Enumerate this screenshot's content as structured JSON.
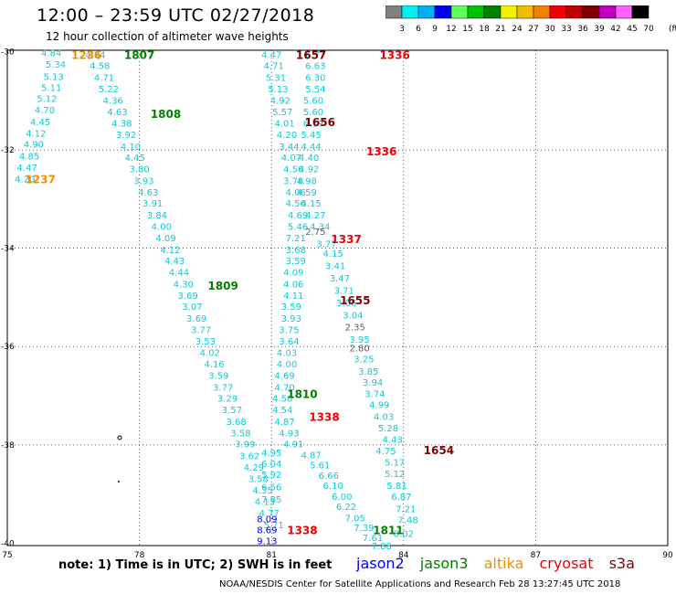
{
  "title": "12:00 – 23:59 UTC 02/27/2018",
  "subtitle": "12 hour collection of altimeter wave heights",
  "color_scale": {
    "colors": [
      "#808080",
      "#00f0f0",
      "#00b0f0",
      "#0000f0",
      "#60ff60",
      "#00c000",
      "#008000",
      "#f0f000",
      "#f0c000",
      "#f08000",
      "#f00000",
      "#c00000",
      "#800000",
      "#c000c0",
      "#ff60ff",
      "#000000"
    ],
    "labels": [
      "3",
      "6",
      "9",
      "12",
      "15",
      "18",
      "21",
      "24",
      "27",
      "30",
      "33",
      "36",
      "39",
      "42",
      "45",
      "70",
      "(ft)"
    ]
  },
  "map": {
    "x_ticks": [
      "75",
      "78",
      "81",
      "84",
      "87",
      "90"
    ],
    "y_ticks": [
      "-30",
      "-32",
      "-34",
      "-36",
      "-38",
      "-40"
    ]
  },
  "track_points": [
    {
      "lon": 76.0,
      "lat": -30.02,
      "v": "4.84"
    },
    {
      "lon": 76.1,
      "lat": -30.25,
      "v": "5.34"
    },
    {
      "lon": 76.05,
      "lat": -30.5,
      "v": "5.13"
    },
    {
      "lon": 76.0,
      "lat": -30.72,
      "v": "5.11"
    },
    {
      "lon": 75.9,
      "lat": -30.95,
      "v": "5.12"
    },
    {
      "lon": 75.85,
      "lat": -31.18,
      "v": "4.70"
    },
    {
      "lon": 75.75,
      "lat": -31.42,
      "v": "4.45"
    },
    {
      "lon": 75.65,
      "lat": -31.65,
      "v": "4.12"
    },
    {
      "lon": 75.6,
      "lat": -31.88,
      "v": "4.90"
    },
    {
      "lon": 75.5,
      "lat": -32.12,
      "v": "4.85"
    },
    {
      "lon": 75.45,
      "lat": -32.35,
      "v": "4.47"
    },
    {
      "lon": 75.4,
      "lat": -32.58,
      "v": "4.20"
    },
    {
      "lon": 77.0,
      "lat": -30.05,
      "v": "4.84"
    },
    {
      "lon": 77.1,
      "lat": -30.28,
      "v": "4.58"
    },
    {
      "lon": 77.2,
      "lat": -30.52,
      "v": "4.71"
    },
    {
      "lon": 77.3,
      "lat": -30.75,
      "v": "5.22"
    },
    {
      "lon": 77.4,
      "lat": -30.98,
      "v": "4.36"
    },
    {
      "lon": 77.5,
      "lat": -31.22,
      "v": "4.63"
    },
    {
      "lon": 77.6,
      "lat": -31.45,
      "v": "4.38"
    },
    {
      "lon": 77.7,
      "lat": -31.68,
      "v": "3.92"
    },
    {
      "lon": 77.8,
      "lat": -31.92,
      "v": "4.10"
    },
    {
      "lon": 77.9,
      "lat": -32.15,
      "v": "4.45"
    },
    {
      "lon": 78.0,
      "lat": -32.38,
      "v": "3.80"
    },
    {
      "lon": 78.1,
      "lat": -32.62,
      "v": "3.93"
    },
    {
      "lon": 78.2,
      "lat": -32.85,
      "v": "4.63"
    },
    {
      "lon": 78.3,
      "lat": -33.08,
      "v": "3.91"
    },
    {
      "lon": 78.4,
      "lat": -33.32,
      "v": "3.84"
    },
    {
      "lon": 78.5,
      "lat": -33.55,
      "v": "4.00"
    },
    {
      "lon": 78.6,
      "lat": -33.78,
      "v": "4.09"
    },
    {
      "lon": 78.7,
      "lat": -34.02,
      "v": "4.12"
    },
    {
      "lon": 78.8,
      "lat": -34.25,
      "v": "4.43"
    },
    {
      "lon": 78.9,
      "lat": -34.48,
      "v": "4.44"
    },
    {
      "lon": 79.0,
      "lat": -34.72,
      "v": "4.30"
    },
    {
      "lon": 79.1,
      "lat": -34.95,
      "v": "3.69"
    },
    {
      "lon": 79.2,
      "lat": -35.18,
      "v": "3.07"
    },
    {
      "lon": 79.3,
      "lat": -35.42,
      "v": "3.69"
    },
    {
      "lon": 79.4,
      "lat": -35.65,
      "v": "3.77"
    },
    {
      "lon": 79.5,
      "lat": -35.88,
      "v": "3.53"
    },
    {
      "lon": 79.6,
      "lat": -36.12,
      "v": "4.02"
    },
    {
      "lon": 79.7,
      "lat": -36.35,
      "v": "4.16"
    },
    {
      "lon": 79.8,
      "lat": -36.58,
      "v": "3.59"
    },
    {
      "lon": 79.9,
      "lat": -36.82,
      "v": "3.77"
    },
    {
      "lon": 80.0,
      "lat": -37.05,
      "v": "3.29"
    },
    {
      "lon": 80.1,
      "lat": -37.28,
      "v": "3.57"
    },
    {
      "lon": 80.2,
      "lat": -37.52,
      "v": "3.68"
    },
    {
      "lon": 80.3,
      "lat": -37.75,
      "v": "3.58"
    },
    {
      "lon": 80.4,
      "lat": -37.98,
      "v": "3.99"
    },
    {
      "lon": 80.5,
      "lat": -38.22,
      "v": "3.62"
    },
    {
      "lon": 80.6,
      "lat": -38.45,
      "v": "4.29"
    },
    {
      "lon": 80.7,
      "lat": -38.68,
      "v": "3.58"
    },
    {
      "lon": 80.8,
      "lat": -38.92,
      "v": "4.35"
    },
    {
      "lon": 80.85,
      "lat": -39.15,
      "v": "4.13"
    },
    {
      "lon": 80.95,
      "lat": -39.38,
      "v": "4.77"
    },
    {
      "lon": 81.05,
      "lat": -39.62,
      "v": "5.71"
    },
    {
      "lon": 81.0,
      "lat": -30.05,
      "v": "4.47"
    },
    {
      "lon": 81.05,
      "lat": -30.28,
      "v": "4.71"
    },
    {
      "lon": 81.1,
      "lat": -30.52,
      "v": "5.31"
    },
    {
      "lon": 81.15,
      "lat": -30.75,
      "v": "5.13"
    },
    {
      "lon": 81.2,
      "lat": -30.98,
      "v": "4.92"
    },
    {
      "lon": 81.25,
      "lat": -31.22,
      "v": "5.57"
    },
    {
      "lon": 81.3,
      "lat": -31.45,
      "v": "4.01"
    },
    {
      "lon": 81.35,
      "lat": -31.68,
      "v": "4.20"
    },
    {
      "lon": 81.4,
      "lat": -31.92,
      "v": "3.44"
    },
    {
      "lon": 81.45,
      "lat": -32.15,
      "v": "4.07"
    },
    {
      "lon": 81.5,
      "lat": -32.38,
      "v": "4.56"
    },
    {
      "lon": 81.5,
      "lat": -32.62,
      "v": "3.78"
    },
    {
      "lon": 81.55,
      "lat": -32.85,
      "v": "4.06"
    },
    {
      "lon": 81.55,
      "lat": -33.08,
      "v": "4.56"
    },
    {
      "lon": 81.6,
      "lat": -33.32,
      "v": "4.69"
    },
    {
      "lon": 81.6,
      "lat": -33.55,
      "v": "5.46"
    },
    {
      "lon": 81.55,
      "lat": -33.78,
      "v": "7.21"
    },
    {
      "lon": 81.55,
      "lat": -34.02,
      "v": "3.68"
    },
    {
      "lon": 81.55,
      "lat": -34.25,
      "v": "3.59"
    },
    {
      "lon": 81.5,
      "lat": -34.48,
      "v": "4.09"
    },
    {
      "lon": 81.5,
      "lat": -34.72,
      "v": "4.06"
    },
    {
      "lon": 81.5,
      "lat": -34.95,
      "v": "4.11"
    },
    {
      "lon": 81.45,
      "lat": -35.18,
      "v": "3.59"
    },
    {
      "lon": 81.45,
      "lat": -35.42,
      "v": "3.93"
    },
    {
      "lon": 81.4,
      "lat": -35.65,
      "v": "3.75"
    },
    {
      "lon": 81.4,
      "lat": -35.88,
      "v": "3.64"
    },
    {
      "lon": 81.35,
      "lat": -36.12,
      "v": "4.03"
    },
    {
      "lon": 81.35,
      "lat": -36.35,
      "v": "4.00"
    },
    {
      "lon": 81.3,
      "lat": -36.58,
      "v": "4.69"
    },
    {
      "lon": 81.3,
      "lat": -36.82,
      "v": "4.70"
    },
    {
      "lon": 81.25,
      "lat": -37.05,
      "v": "4.50"
    },
    {
      "lon": 81.25,
      "lat": -37.28,
      "v": "4.54"
    },
    {
      "lon": 81.3,
      "lat": -37.52,
      "v": "4.87"
    },
    {
      "lon": 81.4,
      "lat": -37.75,
      "v": "4.93"
    },
    {
      "lon": 81.5,
      "lat": -37.98,
      "v": "4.91"
    },
    {
      "lon": 81.0,
      "lat": -38.15,
      "v": "4.95"
    },
    {
      "lon": 81.0,
      "lat": -38.38,
      "v": "6.04"
    },
    {
      "lon": 81.0,
      "lat": -38.6,
      "v": "5.92"
    },
    {
      "lon": 81.0,
      "lat": -38.85,
      "v": "6.56"
    },
    {
      "lon": 81.0,
      "lat": -39.1,
      "v": "7.85"
    },
    {
      "lon": 81.9,
      "lat": -38.2,
      "v": "4.87"
    },
    {
      "lon": 82.1,
      "lat": -38.4,
      "v": "5.61"
    },
    {
      "lon": 82.3,
      "lat": -38.62,
      "v": "6.66"
    },
    {
      "lon": 82.4,
      "lat": -38.82,
      "v": "6.10"
    },
    {
      "lon": 82.6,
      "lat": -39.05,
      "v": "6.00"
    },
    {
      "lon": 82.7,
      "lat": -39.25,
      "v": "6.22"
    },
    {
      "lon": 82.9,
      "lat": -39.48,
      "v": "7.05"
    },
    {
      "lon": 83.1,
      "lat": -39.68,
      "v": "7.39"
    },
    {
      "lon": 83.3,
      "lat": -39.88,
      "v": "7.61"
    },
    {
      "lon": 83.5,
      "lat": -40.05,
      "v": "7.88"
    },
    {
      "lon": 82.0,
      "lat": -30.05,
      "v": "6.77"
    },
    {
      "lon": 82.0,
      "lat": -30.28,
      "v": "6.63"
    },
    {
      "lon": 82.0,
      "lat": -30.52,
      "v": "6.30"
    },
    {
      "lon": 82.0,
      "lat": -30.75,
      "v": "5.54"
    },
    {
      "lon": 81.95,
      "lat": -30.98,
      "v": "5.60"
    },
    {
      "lon": 81.95,
      "lat": -31.22,
      "v": "5.60"
    },
    {
      "lon": 81.95,
      "lat": -31.45,
      "v": "6.19"
    },
    {
      "lon": 81.9,
      "lat": -31.68,
      "v": "5.45"
    },
    {
      "lon": 81.9,
      "lat": -31.92,
      "v": "4.44"
    },
    {
      "lon": 81.85,
      "lat": -32.15,
      "v": "4.40"
    },
    {
      "lon": 81.85,
      "lat": -32.38,
      "v": "4.92"
    },
    {
      "lon": 81.8,
      "lat": -32.62,
      "v": "4.98"
    },
    {
      "lon": 81.8,
      "lat": -32.85,
      "v": "4.59"
    },
    {
      "lon": 81.9,
      "lat": -33.08,
      "v": "4.15"
    },
    {
      "lon": 82.0,
      "lat": -33.32,
      "v": "4.27"
    },
    {
      "lon": 82.1,
      "lat": -33.55,
      "v": "4.34"
    },
    {
      "lon": 82.25,
      "lat": -33.9,
      "v": "3.77"
    },
    {
      "lon": 82.4,
      "lat": -34.1,
      "v": "4.15"
    },
    {
      "lon": 82.45,
      "lat": -34.35,
      "v": "3.41"
    },
    {
      "lon": 82.55,
      "lat": -34.6,
      "v": "3.47"
    },
    {
      "lon": 82.65,
      "lat": -34.85,
      "v": "3.71"
    },
    {
      "lon": 82.7,
      "lat": -35.1,
      "v": "3.06"
    },
    {
      "lon": 82.85,
      "lat": -35.35,
      "v": "3.04"
    },
    {
      "lon": 83.0,
      "lat": -35.85,
      "v": "3.95"
    },
    {
      "lon": 83.1,
      "lat": -36.25,
      "v": "3.25"
    },
    {
      "lon": 83.2,
      "lat": -36.5,
      "v": "3.85"
    },
    {
      "lon": 83.3,
      "lat": -36.72,
      "v": "3.94"
    },
    {
      "lon": 83.35,
      "lat": -36.95,
      "v": "3.74"
    },
    {
      "lon": 83.45,
      "lat": -37.18,
      "v": "4.99"
    },
    {
      "lon": 83.55,
      "lat": -37.42,
      "v": "4.03"
    },
    {
      "lon": 83.65,
      "lat": -37.65,
      "v": "5.28"
    },
    {
      "lon": 83.75,
      "lat": -37.88,
      "v": "4.43"
    },
    {
      "lon": 83.6,
      "lat": -38.12,
      "v": "4.75"
    },
    {
      "lon": 83.8,
      "lat": -38.35,
      "v": "5.17"
    },
    {
      "lon": 83.8,
      "lat": -38.58,
      "v": "5.12"
    },
    {
      "lon": 83.85,
      "lat": -38.82,
      "v": "5.81"
    },
    {
      "lon": 83.95,
      "lat": -39.05,
      "v": "6.87"
    },
    {
      "lon": 84.05,
      "lat": -39.3,
      "v": "7.21"
    },
    {
      "lon": 84.1,
      "lat": -39.52,
      "v": "7.48"
    },
    {
      "lon": 84.0,
      "lat": -39.8,
      "v": "8.02"
    },
    {
      "lon": 80.9,
      "lat": -39.5,
      "v": "8.09",
      "c": "#0000d0"
    },
    {
      "lon": 80.9,
      "lat": -39.72,
      "v": "8.69",
      "c": "#0000d0"
    },
    {
      "lon": 80.9,
      "lat": -39.95,
      "v": "9.13",
      "c": "#0000d0"
    },
    {
      "lon": 82.0,
      "lat": -33.65,
      "v": "2.75",
      "c": "#606060"
    },
    {
      "lon": 82.9,
      "lat": -35.6,
      "v": "2.35",
      "c": "#606060"
    },
    {
      "lon": 83.0,
      "lat": -36.02,
      "v": "2.80",
      "c": "#606060"
    }
  ],
  "time_labels": [
    {
      "lon": 76.8,
      "lat": -30.05,
      "t": "1236",
      "c": "#f09000"
    },
    {
      "lon": 75.75,
      "lat": -32.58,
      "t": "1237",
      "c": "#f09000"
    },
    {
      "lon": 78.0,
      "lat": -30.05,
      "t": "1807",
      "c": "#008000"
    },
    {
      "lon": 78.6,
      "lat": -31.25,
      "t": "1808",
      "c": "#008000"
    },
    {
      "lon": 79.9,
      "lat": -34.75,
      "t": "1809",
      "c": "#008000"
    },
    {
      "lon": 81.7,
      "lat": -36.95,
      "t": "1810",
      "c": "#008000"
    },
    {
      "lon": 83.65,
      "lat": -39.72,
      "t": "1811",
      "c": "#008000"
    },
    {
      "lon": 81.9,
      "lat": -30.05,
      "t": "1657",
      "c": "#800000"
    },
    {
      "lon": 82.1,
      "lat": -31.42,
      "t": "1656",
      "c": "#800000"
    },
    {
      "lon": 82.9,
      "lat": -35.05,
      "t": "1655",
      "c": "#800000"
    },
    {
      "lon": 84.8,
      "lat": -38.1,
      "t": "1654",
      "c": "#800000"
    },
    {
      "lon": 83.8,
      "lat": -30.05,
      "t": "1336",
      "c": "#f00000"
    },
    {
      "lon": 83.5,
      "lat": -32.02,
      "t": "1336",
      "c": "#f00000"
    },
    {
      "lon": 82.7,
      "lat": -33.8,
      "t": "1337",
      "c": "#f00000"
    },
    {
      "lon": 82.2,
      "lat": -37.42,
      "t": "1338",
      "c": "#f00000"
    },
    {
      "lon": 81.7,
      "lat": -39.72,
      "t": "1338",
      "c": "#f00000"
    }
  ],
  "note": "note: 1) Time is in UTC; 2) SWH is in feet",
  "satellites": [
    {
      "name": "jason2",
      "color": "#0000f0"
    },
    {
      "name": "jason3",
      "color": "#008000"
    },
    {
      "name": "altika",
      "color": "#f09000"
    },
    {
      "name": "cryosat",
      "color": "#f00000"
    },
    {
      "name": "s3a",
      "color": "#800000"
    }
  ],
  "footer": "NOAA/NESDIS Center for Satellite Applications and Research    Feb 28 13:27:45 UTC 2018"
}
